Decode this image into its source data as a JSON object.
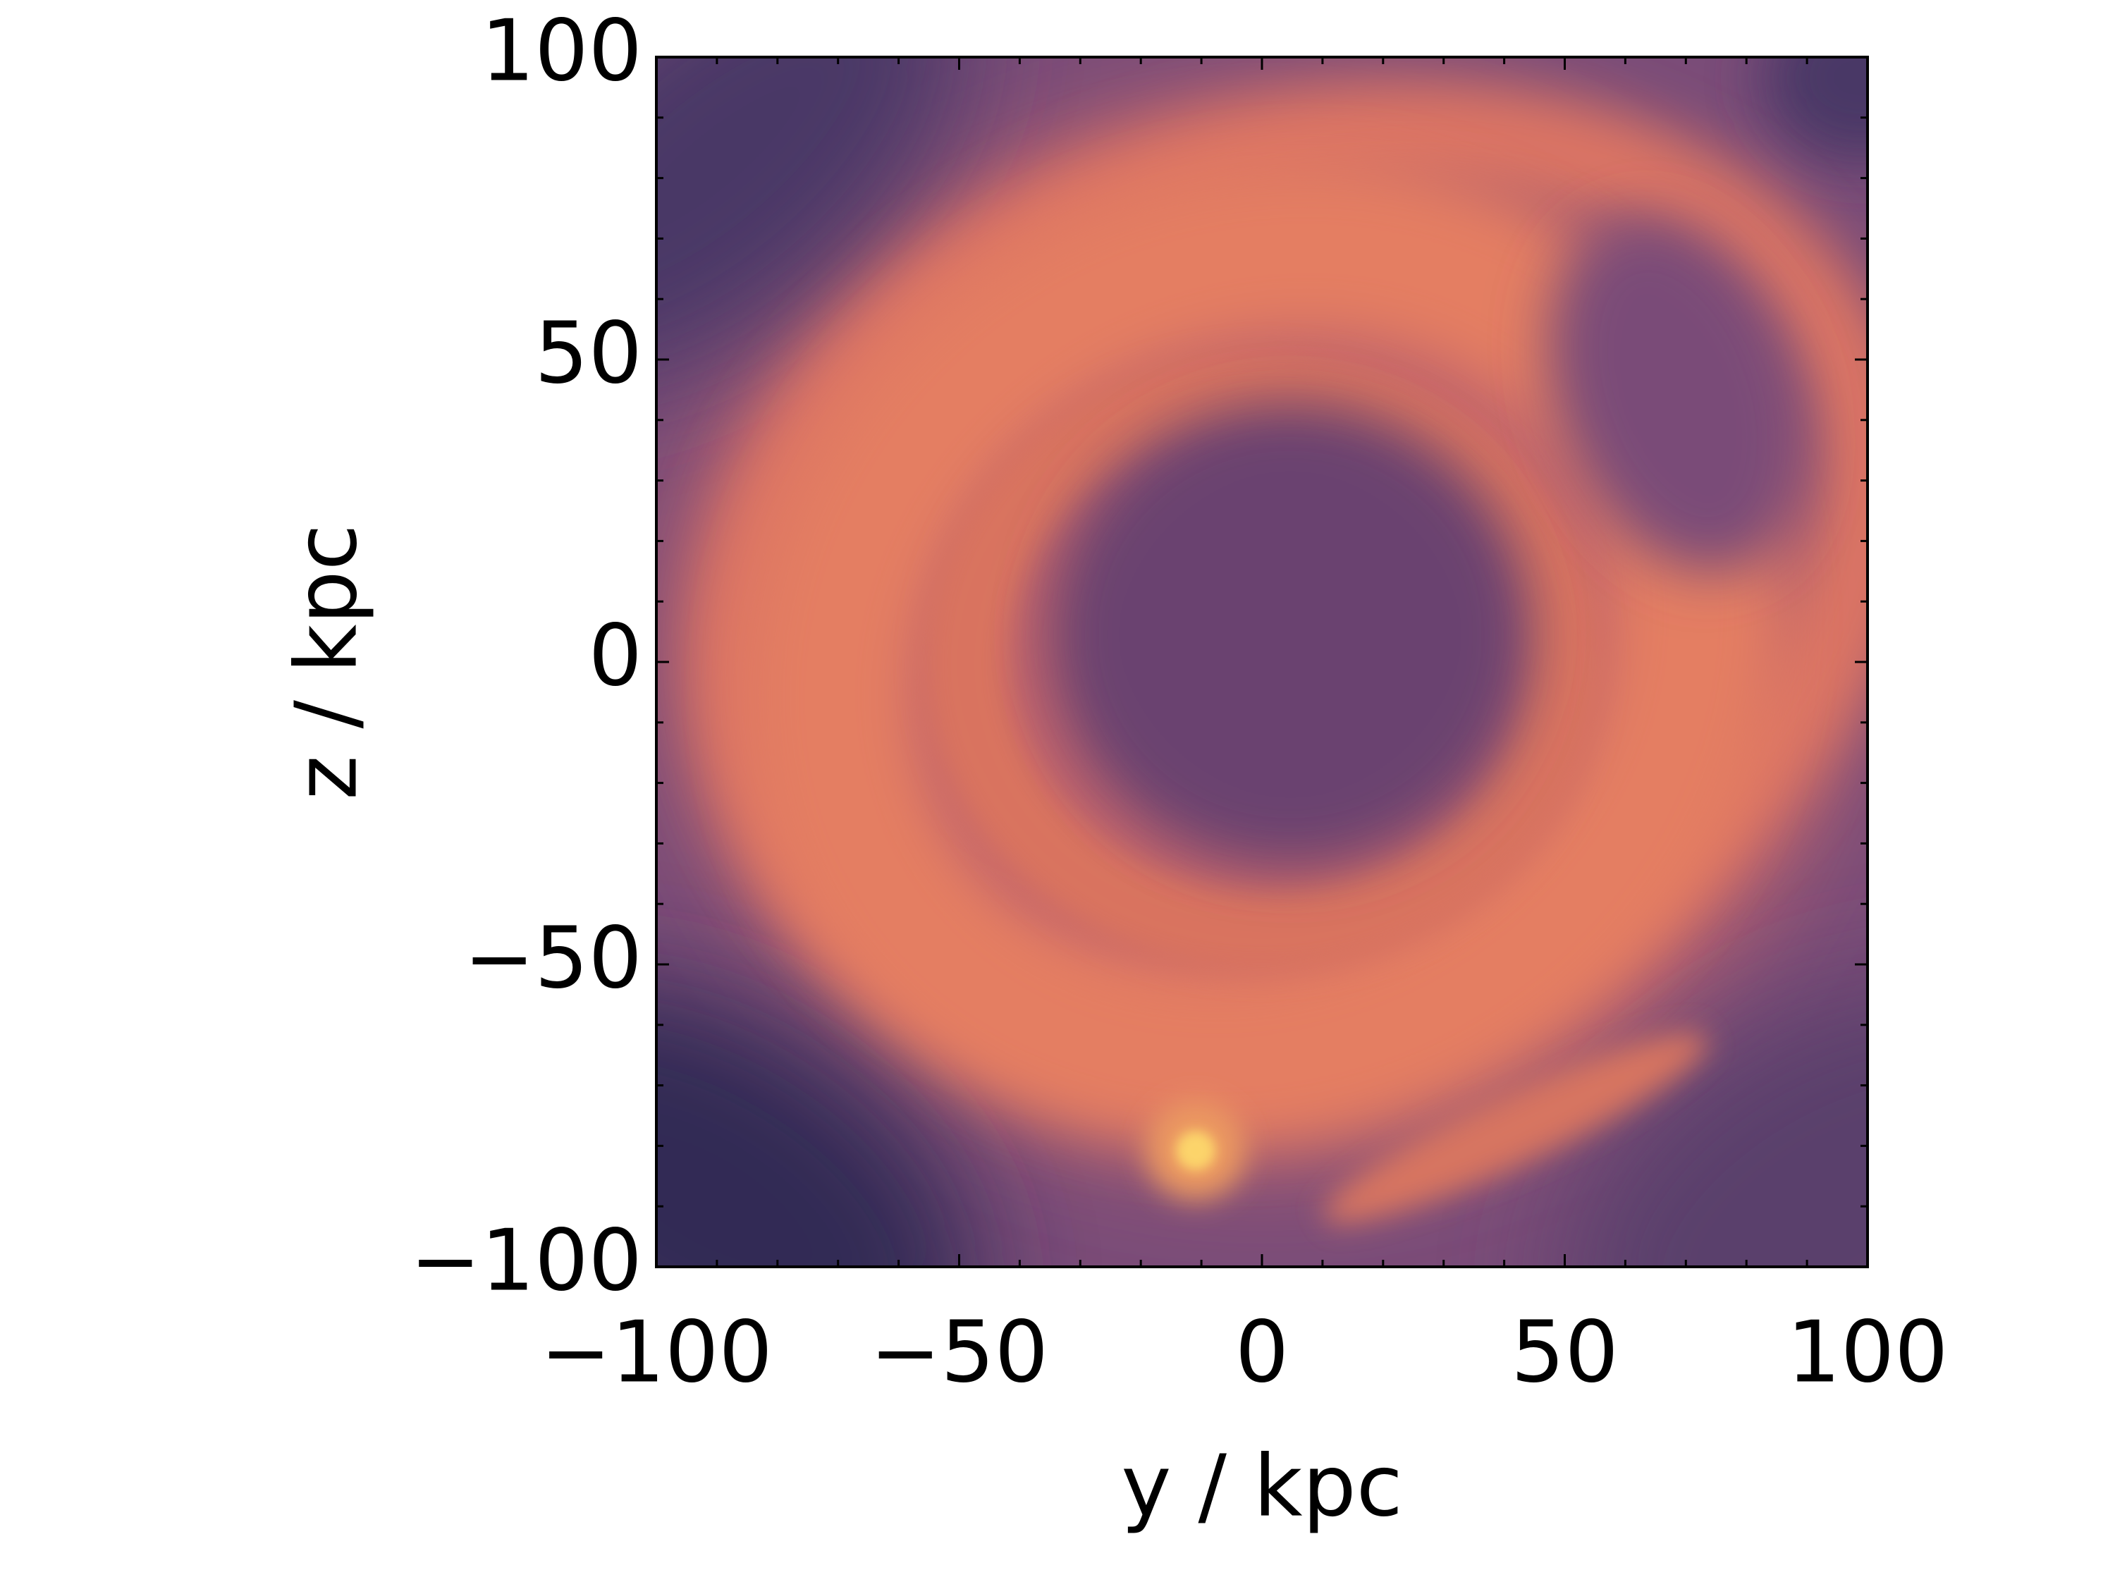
{
  "chart_data": {
    "type": "image",
    "xlabel": "y / kpc",
    "ylabel": "z / kpc",
    "xlim": [
      -100,
      100
    ],
    "ylim": [
      -100,
      100
    ],
    "xticks": [
      {
        "value": -100,
        "label": "−100"
      },
      {
        "value": -50,
        "label": "−50"
      },
      0,
      50,
      100
    ],
    "yticks": [
      {
        "value": -100,
        "label": "−100"
      },
      {
        "value": -50,
        "label": "−50"
      },
      0,
      50,
      100
    ],
    "xminorticks": [
      -90,
      -80,
      -70,
      -60,
      -40,
      -30,
      -20,
      -10,
      10,
      20,
      30,
      40,
      60,
      70,
      80,
      90
    ],
    "yminorticks": [
      -90,
      -80,
      -70,
      -60,
      -40,
      -30,
      -20,
      -10,
      10,
      20,
      30,
      40,
      60,
      70,
      80,
      90
    ]
  }
}
